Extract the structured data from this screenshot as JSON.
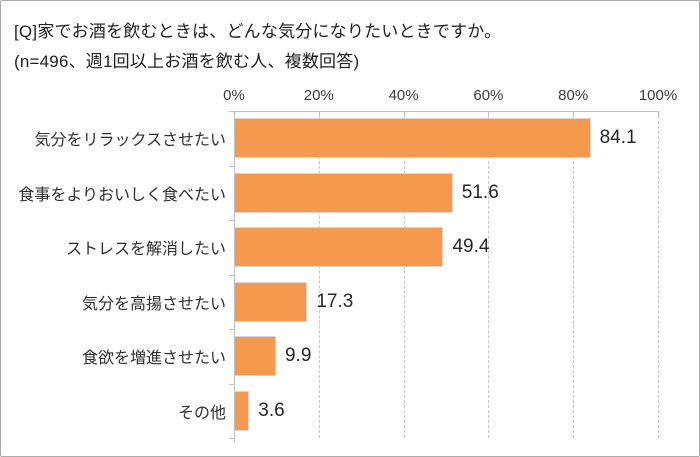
{
  "header": {
    "title": "[Q]家でお酒を飲むときは、どんな気分になりたいときですか。",
    "subtitle": "(n=496、週1回以上お酒を飲む人、複数回答)"
  },
  "colors": {
    "bar_fill": "#f5994e",
    "bar_border": "#d6d6d6",
    "gridline": "#c3c3c3",
    "axis_line": "#bfbfbf",
    "text": "#262626",
    "frame_border": "#ababab",
    "background": "#ffffff"
  },
  "chart_data": {
    "type": "bar",
    "orientation": "horizontal",
    "title": "[Q]家でお酒を飲むときは、どんな気分になりたいときですか。",
    "subtitle": "(n=496、週1回以上お酒を飲む人、複数回答)",
    "categories": [
      "気分をリラックスさせたい",
      "食事をよりおいしく食べたい",
      "ストレスを解消したい",
      "気分を高揚させたい",
      "食欲を増進させたい",
      "その他"
    ],
    "values": [
      84.1,
      51.6,
      49.4,
      17.3,
      9.9,
      3.6
    ],
    "value_labels": [
      "84.1",
      "51.6",
      "49.4",
      "17.3",
      "9.9",
      "3.6"
    ],
    "xlabel": "",
    "ylabel": "",
    "xlim": [
      0,
      100
    ],
    "x_axis_position": "top",
    "tick_interval": 20,
    "tick_labels": [
      "0%",
      "20%",
      "40%",
      "60%",
      "80%",
      "100%"
    ],
    "grid": "vertical-dashed",
    "legend": "none"
  }
}
